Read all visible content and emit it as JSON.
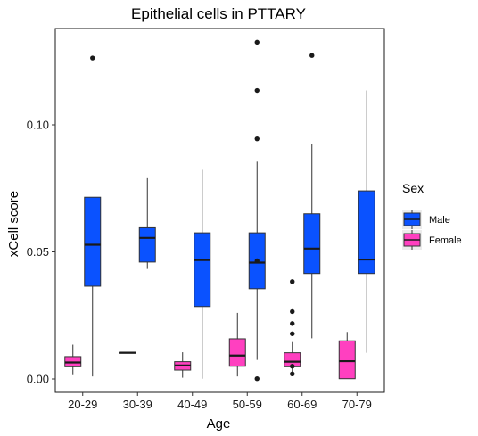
{
  "chart_data": {
    "type": "boxplot",
    "title": "Epithelial cells in PTTARY",
    "xlabel": "Age",
    "ylabel": "xCell score",
    "ylim": [
      -0.003,
      0.1325
    ],
    "yticks": [
      0.0,
      0.05,
      0.1
    ],
    "ytick_labels": [
      "0.00",
      "0.05",
      "0.10"
    ],
    "categories": [
      "20-29",
      "30-39",
      "40-49",
      "50-59",
      "60-69",
      "70-79"
    ],
    "grid": false,
    "legend": {
      "title": "Sex",
      "position": "right"
    },
    "series": [
      {
        "name": "Male",
        "color": "#0a52ff",
        "boxes": [
          {
            "category": "20-29",
            "whisker_low": 0.001,
            "q1": 0.0365,
            "median": 0.0528,
            "q3": 0.0715,
            "whisker_high": 0.0715,
            "outliers": [
              0.1263
            ]
          },
          {
            "category": "30-39",
            "whisker_low": 0.0433,
            "q1": 0.046,
            "median": 0.0555,
            "q3": 0.0595,
            "whisker_high": 0.079,
            "outliers": []
          },
          {
            "category": "40-49",
            "whisker_low": 0.0001,
            "q1": 0.0285,
            "median": 0.0468,
            "q3": 0.0575,
            "whisker_high": 0.0823,
            "outliers": []
          },
          {
            "category": "50-59",
            "whisker_low": 0.0075,
            "q1": 0.0355,
            "median": 0.0458,
            "q3": 0.0575,
            "whisker_high": 0.0855,
            "outliers": [
              0.0945,
              0.1135,
              0.1325,
              0.0465,
              0.0001
            ]
          },
          {
            "category": "60-69",
            "whisker_low": 0.016,
            "q1": 0.0415,
            "median": 0.0513,
            "q3": 0.065,
            "whisker_high": 0.0923,
            "outliers": [
              0.1273
            ]
          },
          {
            "category": "70-79",
            "whisker_low": 0.0103,
            "q1": 0.0415,
            "median": 0.047,
            "q3": 0.074,
            "whisker_high": 0.1135,
            "outliers": []
          }
        ]
      },
      {
        "name": "Female",
        "color": "#ff40c0",
        "boxes": [
          {
            "category": "20-29",
            "whisker_low": 0.0015,
            "q1": 0.0048,
            "median": 0.0065,
            "q3": 0.0088,
            "whisker_high": 0.0135,
            "outliers": []
          },
          {
            "category": "30-39",
            "whisker_low": 0.0103,
            "q1": 0.0103,
            "median": 0.0103,
            "q3": 0.0103,
            "whisker_high": 0.0103,
            "outliers": []
          },
          {
            "category": "40-49",
            "whisker_low": 0.0005,
            "q1": 0.0035,
            "median": 0.0053,
            "q3": 0.0068,
            "whisker_high": 0.0105,
            "outliers": []
          },
          {
            "category": "50-59",
            "whisker_low": 0.001,
            "q1": 0.005,
            "median": 0.0092,
            "q3": 0.0158,
            "whisker_high": 0.026,
            "outliers": []
          },
          {
            "category": "60-69",
            "whisker_low": 0.0015,
            "q1": 0.0048,
            "median": 0.0068,
            "q3": 0.0103,
            "whisker_high": 0.0145,
            "outliers": [
              0.0178,
              0.0218,
              0.0265,
              0.0383,
              0.005,
              0.002
            ]
          },
          {
            "category": "70-79",
            "whisker_low": 0.0001,
            "q1": 0.0001,
            "median": 0.007,
            "q3": 0.015,
            "whisker_high": 0.0185,
            "outliers": []
          }
        ]
      }
    ]
  }
}
